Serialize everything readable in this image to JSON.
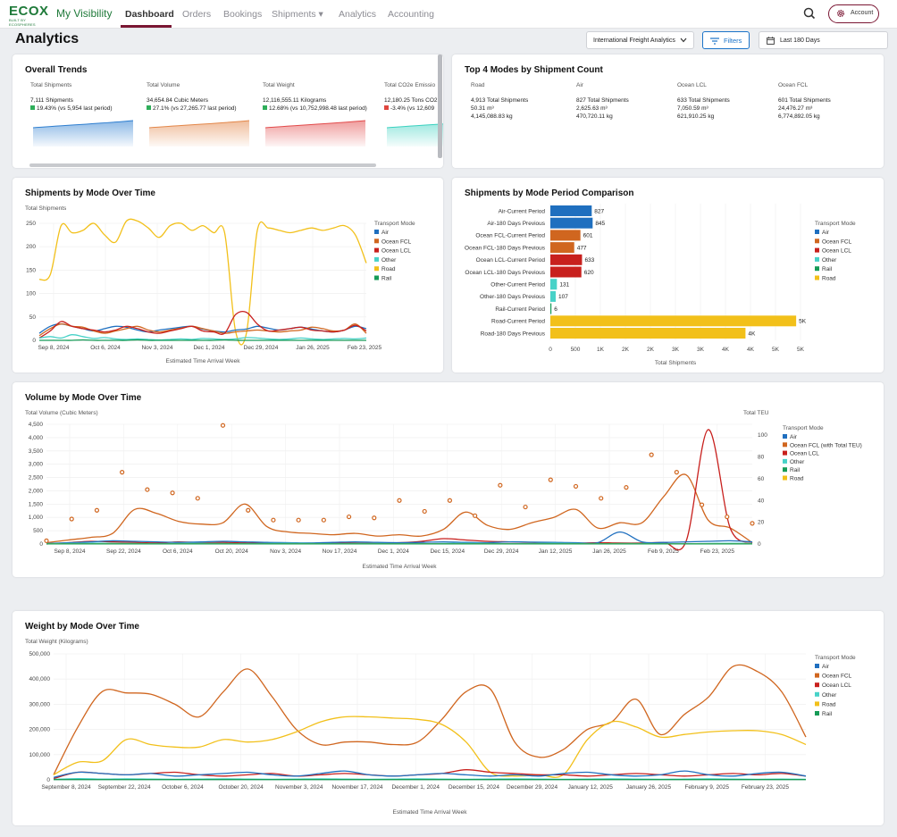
{
  "nav": {
    "logo_text": "ECOX",
    "logo_tagline": "BUILT BY ECOSPHERES",
    "app_name": "My Visibility",
    "items": [
      {
        "label": "Dashboard",
        "active": true
      },
      {
        "label": "Orders"
      },
      {
        "label": "Bookings"
      },
      {
        "label": "Shipments ▾"
      },
      {
        "label": "Analytics"
      },
      {
        "label": "Accounting"
      }
    ],
    "search_icon": "search-icon",
    "account_label": "Account",
    "account_icon": "gear-icon",
    "accent_color": "#7a1633"
  },
  "header": {
    "title": "Analytics",
    "dashboard_select": "International Freight Analytics",
    "filters_label": "Filters",
    "date_range": "Last 180 Days"
  },
  "overall_trends": {
    "title": "Overall Trends",
    "metrics": [
      {
        "label": "Total Shipments",
        "value": "7,111 Shipments",
        "delta": "19.43% (vs 5,954 last period)",
        "direction": "up",
        "color": "#2f7fd0"
      },
      {
        "label": "Total Volume",
        "value": "34,654.84 Cubic Meters",
        "delta": "27.1% (vs 27,265.77 last period)",
        "direction": "up",
        "color": "#e3874a"
      },
      {
        "label": "Total Weight",
        "value": "12,116,555.11 Kilograms",
        "delta": "12.68% (vs 10,752,998.48 last period)",
        "direction": "up",
        "color": "#e24b4b"
      },
      {
        "label": "Total CO2e Emissio",
        "value": "12,180.25 Tons CO2",
        "delta": "-3.4% (vs 12,609",
        "direction": "down",
        "color": "#3bd1c0"
      }
    ]
  },
  "top_modes": {
    "title": "Top 4 Modes by Shipment Count",
    "modes": [
      {
        "label": "Road",
        "count": "4,913 Total Shipments",
        "volume": "50.31 m³",
        "weight": "4,145,088.83 kg"
      },
      {
        "label": "Air",
        "count": "827 Total Shipments",
        "volume": "2,625.63 m³",
        "weight": "470,720.11 kg"
      },
      {
        "label": "Ocean LCL",
        "count": "633 Total Shipments",
        "volume": "7,050.59 m³",
        "weight": "621,910.25 kg"
      },
      {
        "label": "Ocean FCL",
        "count": "601 Total Shipments",
        "volume": "24,476.27 m³",
        "weight": "6,774,892.05 kg"
      }
    ]
  },
  "colors": {
    "Air": "#1f6fbf",
    "Ocean FCL": "#d0661f",
    "Ocean LCL": "#c8201d",
    "Other": "#48d2c8",
    "Road": "#f2c01a",
    "Rail": "#169b57"
  },
  "shipments_over_time": {
    "title": "Shipments by Mode Over Time",
    "chart_data": {
      "type": "line",
      "ylabel": "Total Shipments",
      "xlabel": "Estimated Time Arrival Week",
      "ylim": [
        0,
        250
      ],
      "yticks": [
        0,
        50,
        100,
        150,
        200,
        250
      ],
      "x_ticks": [
        "Sep 8, 2024",
        "Oct 6, 2024",
        "Nov 3, 2024",
        "Dec 1, 2024",
        "Dec 29, 2024",
        "Jan 26, 2025",
        "Feb 23, 2025"
      ],
      "legend_title": "Transport Mode",
      "legend": [
        "Air",
        "Ocean FCL",
        "Ocean LCL",
        "Other",
        "Road",
        "Rail"
      ],
      "series": [
        {
          "name": "Road",
          "values": [
            130,
            140,
            245,
            230,
            235,
            250,
            225,
            210,
            255,
            255,
            240,
            220,
            245,
            250,
            235,
            245,
            230,
            230,
            20,
            15,
            235,
            240,
            235,
            230,
            235,
            240,
            235,
            240,
            245,
            225,
            165
          ]
        },
        {
          "name": "Air",
          "values": [
            15,
            30,
            35,
            30,
            25,
            20,
            25,
            30,
            28,
            22,
            18,
            22,
            25,
            28,
            30,
            24,
            20,
            18,
            22,
            24,
            30,
            26,
            22,
            25,
            28,
            24,
            20,
            18,
            22,
            30,
            25
          ]
        },
        {
          "name": "Ocean FCL",
          "values": [
            10,
            25,
            35,
            30,
            28,
            20,
            15,
            20,
            25,
            30,
            22,
            18,
            22,
            26,
            30,
            25,
            20,
            15,
            18,
            20,
            22,
            20,
            18,
            20,
            22,
            28,
            25,
            20,
            22,
            35,
            15
          ]
        },
        {
          "name": "Ocean LCL",
          "values": [
            5,
            20,
            40,
            30,
            25,
            22,
            18,
            22,
            30,
            25,
            18,
            15,
            20,
            25,
            30,
            20,
            18,
            15,
            55,
            60,
            35,
            20,
            22,
            25,
            28,
            22,
            20,
            18,
            22,
            32,
            20
          ]
        },
        {
          "name": "Other",
          "values": [
            5,
            8,
            5,
            12,
            8,
            4,
            6,
            3,
            2,
            3,
            2,
            1,
            2,
            3,
            2,
            4,
            3,
            2,
            3,
            6,
            5,
            3,
            2,
            3,
            5,
            3,
            2,
            3,
            4,
            3,
            5
          ]
        },
        {
          "name": "Rail",
          "values": [
            0,
            0,
            0,
            0,
            1,
            0,
            0,
            0,
            0,
            1,
            0,
            0,
            0,
            0,
            0,
            0,
            0,
            1,
            0,
            0,
            0,
            0,
            0,
            0,
            0,
            0,
            0,
            0,
            0,
            0,
            0
          ]
        }
      ]
    }
  },
  "period_comparison": {
    "title": "Shipments by Mode Period Comparison",
    "chart_data": {
      "type": "bar",
      "orientation": "horizontal",
      "xlabel": "Total Shipments",
      "xlim": [
        0,
        5000
      ],
      "x_ticks": [
        "0",
        "500",
        "1K",
        "2K",
        "2K",
        "3K",
        "3K",
        "4K",
        "4K",
        "5K",
        "5K"
      ],
      "legend_title": "Transport Mode",
      "legend": [
        "Air",
        "Ocean FCL",
        "Ocean LCL",
        "Other",
        "Rail",
        "Road"
      ],
      "bars": [
        {
          "label": "Air-Current Period",
          "value": 827,
          "value_label": "827",
          "mode": "Air"
        },
        {
          "label": "Air-180 Days Previous",
          "value": 845,
          "value_label": "845",
          "mode": "Air"
        },
        {
          "label": "Ocean FCL-Current Period",
          "value": 601,
          "value_label": "601",
          "mode": "Ocean FCL"
        },
        {
          "label": "Ocean FCL-180 Days Previous",
          "value": 477,
          "value_label": "477",
          "mode": "Ocean FCL"
        },
        {
          "label": "Ocean LCL-Current Period",
          "value": 633,
          "value_label": "633",
          "mode": "Ocean LCL"
        },
        {
          "label": "Ocean LCL-180 Days Previous",
          "value": 620,
          "value_label": "620",
          "mode": "Ocean LCL"
        },
        {
          "label": "Other-Current Period",
          "value": 131,
          "value_label": "131",
          "mode": "Other"
        },
        {
          "label": "Other-180 Days Previous",
          "value": 107,
          "value_label": "107",
          "mode": "Other"
        },
        {
          "label": "Rail-Current Period",
          "value": 6,
          "value_label": "6",
          "mode": "Rail"
        },
        {
          "label": "Road-Current Period",
          "value": 4913,
          "value_label": "5K",
          "mode": "Road"
        },
        {
          "label": "Road-180 Days Previous",
          "value": 3900,
          "value_label": "4K",
          "mode": "Road"
        }
      ]
    }
  },
  "volume_over_time": {
    "title": "Volume by Mode Over Time",
    "chart_data": {
      "type": "line",
      "ylabel": "Total Volume (Cubic Meters)",
      "y2label": "Total TEU",
      "xlabel": "Estimated Time Arrival Week",
      "ylim": [
        0,
        4500
      ],
      "yticks": [
        0,
        500,
        1000,
        1500,
        2000,
        2500,
        3000,
        3500,
        4000,
        4500
      ],
      "y2lim": [
        0,
        110
      ],
      "y2ticks": [
        0,
        20,
        40,
        60,
        80,
        100
      ],
      "x_ticks": [
        "Sep 8, 2024",
        "Sep 22, 2024",
        "Oct 6, 2024",
        "Oct 20, 2024",
        "Nov 3, 2024",
        "Nov 17, 2024",
        "Dec 1, 2024",
        "Dec 15, 2024",
        "Dec 29, 2024",
        "Jan 12, 2025",
        "Jan 26, 2025",
        "Feb 9, 2025",
        "Feb 23, 2025"
      ],
      "legend_title": "Transport Mode",
      "legend": [
        "Air",
        "Ocean FCL (with Total TEU)",
        "Ocean LCL",
        "Other",
        "Rail",
        "Road"
      ],
      "series": [
        {
          "name": "Ocean FCL",
          "values": [
            50,
            150,
            250,
            400,
            1300,
            1150,
            850,
            750,
            800,
            1500,
            650,
            450,
            400,
            350,
            400,
            300,
            350,
            300,
            550,
            1200,
            700,
            550,
            800,
            1000,
            1300,
            600,
            800,
            800,
            1800,
            2600,
            900,
            600,
            50
          ]
        },
        {
          "name": "Ocean LCL",
          "values": [
            0,
            50,
            100,
            80,
            60,
            40,
            80,
            50,
            60,
            40,
            30,
            20,
            30,
            50,
            40,
            30,
            50,
            100,
            200,
            150,
            100,
            80,
            60,
            40,
            30,
            50,
            40,
            40,
            60,
            100,
            4300,
            600,
            50
          ]
        },
        {
          "name": "Air",
          "values": [
            20,
            50,
            80,
            120,
            100,
            80,
            60,
            80,
            100,
            80,
            60,
            50,
            40,
            60,
            80,
            60,
            50,
            60,
            80,
            60,
            50,
            80,
            70,
            60,
            50,
            50,
            450,
            80,
            60,
            80,
            100,
            120,
            80
          ]
        },
        {
          "name": "Other",
          "values": [
            10,
            20,
            30,
            30,
            20,
            10,
            20,
            30,
            20,
            10,
            20,
            30,
            20,
            10,
            20,
            20,
            10,
            10,
            20,
            30,
            20,
            10,
            20,
            30,
            20,
            10,
            20,
            20,
            10,
            10,
            20,
            30,
            20
          ]
        },
        {
          "name": "Road",
          "values": [
            5,
            5,
            5,
            5,
            5,
            5,
            5,
            5,
            5,
            5,
            5,
            5,
            5,
            5,
            5,
            5,
            5,
            5,
            5,
            5,
            5,
            5,
            5,
            5,
            5,
            5,
            5,
            5,
            5,
            5,
            5,
            5,
            5
          ]
        },
        {
          "name": "Rail",
          "values": [
            2,
            2,
            2,
            2,
            2,
            2,
            2,
            2,
            2,
            2,
            2,
            2,
            2,
            2,
            2,
            2,
            2,
            2,
            2,
            2,
            2,
            2,
            2,
            2,
            2,
            2,
            2,
            2,
            2,
            2,
            2,
            2,
            2
          ]
        }
      ],
      "teu_points": [
        3,
        23,
        31,
        66,
        50,
        47,
        42,
        109,
        31,
        22,
        22,
        22,
        25,
        24,
        40,
        30,
        40,
        26,
        54,
        34,
        59,
        53,
        42,
        52,
        82,
        66,
        36,
        25,
        19
      ]
    }
  },
  "weight_over_time": {
    "title": "Weight by Mode Over Time",
    "chart_data": {
      "type": "line",
      "ylabel": "Total Weight (Kilograms)",
      "xlabel": "Estimated Time Arrival Week",
      "ylim": [
        0,
        500000
      ],
      "yticks": [
        0,
        100000,
        200000,
        300000,
        400000,
        500000
      ],
      "ytick_labels": [
        "0",
        "100,000",
        "200,000",
        "300,000",
        "400,000",
        "500,000"
      ],
      "x_ticks": [
        "September 8, 2024",
        "September 22, 2024",
        "October 6, 2024",
        "October 20, 2024",
        "November 3, 2024",
        "November 17, 2024",
        "December 1, 2024",
        "December 15, 2024",
        "December 29, 2024",
        "January 12, 2025",
        "January 26, 2025",
        "February 9, 2025",
        "February 23, 2025"
      ],
      "legend_title": "Transport Mode",
      "legend": [
        "Air",
        "Ocean FCL",
        "Ocean LCL",
        "Other",
        "Road",
        "Rail"
      ],
      "series": [
        {
          "name": "Ocean FCL",
          "values": [
            20000,
            210000,
            350000,
            345000,
            340000,
            300000,
            250000,
            350000,
            440000,
            330000,
            200000,
            140000,
            150000,
            150000,
            140000,
            150000,
            240000,
            350000,
            360000,
            150000,
            90000,
            120000,
            200000,
            230000,
            320000,
            180000,
            260000,
            330000,
            450000,
            430000,
            350000,
            170000
          ]
        },
        {
          "name": "Road",
          "values": [
            20000,
            70000,
            75000,
            160000,
            140000,
            130000,
            130000,
            160000,
            150000,
            160000,
            190000,
            230000,
            250000,
            250000,
            245000,
            240000,
            220000,
            150000,
            30000,
            15000,
            20000,
            20000,
            160000,
            230000,
            210000,
            170000,
            180000,
            190000,
            195000,
            195000,
            180000,
            140000
          ]
        },
        {
          "name": "Ocean LCL",
          "values": [
            5000,
            30000,
            25000,
            20000,
            25000,
            30000,
            20000,
            15000,
            20000,
            25000,
            15000,
            20000,
            25000,
            20000,
            15000,
            20000,
            25000,
            40000,
            30000,
            25000,
            20000,
            20000,
            15000,
            20000,
            25000,
            20000,
            15000,
            20000,
            25000,
            20000,
            25000,
            15000
          ]
        },
        {
          "name": "Air",
          "values": [
            10000,
            30000,
            25000,
            20000,
            25000,
            15000,
            20000,
            25000,
            30000,
            20000,
            15000,
            25000,
            35000,
            20000,
            15000,
            20000,
            25000,
            20000,
            15000,
            20000,
            15000,
            25000,
            30000,
            20000,
            15000,
            20000,
            35000,
            20000,
            15000,
            25000,
            30000,
            15000
          ]
        },
        {
          "name": "Other",
          "values": [
            2000,
            5000,
            3000,
            4000,
            3000,
            2000,
            3000,
            4000,
            3000,
            2000,
            3000,
            4000,
            3000,
            2000,
            3000,
            4000,
            3000,
            2000,
            3000,
            4000,
            3000,
            2000,
            3000,
            4000,
            3000,
            2000,
            3000,
            4000,
            3000,
            2000,
            3000,
            2000
          ]
        },
        {
          "name": "Rail",
          "values": [
            1000,
            1000,
            1000,
            1000,
            1000,
            1000,
            1000,
            1000,
            1000,
            1000,
            1000,
            1000,
            1000,
            1000,
            1000,
            1000,
            1000,
            1000,
            1000,
            1000,
            1000,
            1000,
            1000,
            1000,
            1000,
            1000,
            1000,
            1000,
            1000,
            1000,
            1000,
            1000
          ]
        }
      ]
    }
  }
}
